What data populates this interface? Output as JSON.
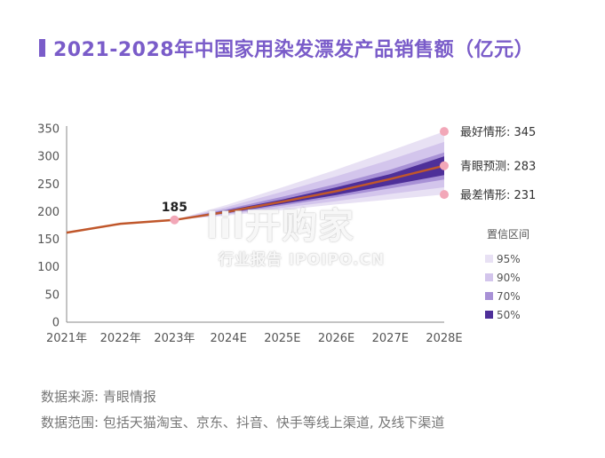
{
  "title": "2021-2028年中国家用染发漂发产品销售额（亿元）",
  "chart_data": {
    "type": "line",
    "title": "2021-2028年中国家用染发漂发产品销售额（亿元）",
    "categories": [
      "2021年",
      "2022年",
      "2023年",
      "2024E",
      "2025E",
      "2026E",
      "2027E",
      "2028E"
    ],
    "ylim": [
      0,
      350
    ],
    "yticks": [
      0,
      50,
      100,
      150,
      200,
      250,
      300,
      350
    ],
    "grid": false,
    "series": [
      {
        "name": "青眼预测",
        "values": [
          162,
          178,
          185,
          200,
          218,
          237,
          259,
          283
        ],
        "color": "#c0572b"
      }
    ],
    "confidence_bands": [
      {
        "name": "95%",
        "color": "#e8e1f4",
        "lower": [
          162,
          178,
          185,
          193,
          203,
          213,
          222,
          231
        ],
        "upper": [
          162,
          178,
          185,
          213,
          244,
          276,
          310,
          345
        ]
      },
      {
        "name": "90%",
        "color": "#d3c5ec",
        "lower": [
          162,
          178,
          185,
          195,
          207,
          219,
          232,
          244
        ],
        "upper": [
          162,
          178,
          185,
          209,
          236,
          264,
          294,
          326
        ]
      },
      {
        "name": "70%",
        "color": "#a891d6",
        "lower": [
          162,
          178,
          185,
          197,
          211,
          226,
          242,
          258
        ],
        "upper": [
          162,
          178,
          185,
          205,
          227,
          250,
          276,
          307
        ]
      },
      {
        "name": "50%",
        "color": "#4e2f99",
        "lower": [
          162,
          178,
          185,
          198,
          214,
          230,
          248,
          266
        ],
        "upper": [
          162,
          178,
          185,
          203,
          222,
          244,
          268,
          300
        ]
      }
    ],
    "legend_title": "置信区间",
    "legend_position": "right",
    "point_label": {
      "category": "2023年",
      "value": 185,
      "text": "185"
    },
    "scenario_markers": [
      {
        "label": "最好情形: 345",
        "value": 345,
        "color": "#f2a7b8"
      },
      {
        "label": "青眼预测: 283",
        "value": 283,
        "color": "#f2a7b8"
      },
      {
        "label": "最差情形: 231",
        "value": 231,
        "color": "#f2a7b8"
      }
    ]
  },
  "footer": {
    "source": "数据来源: 青眼情报",
    "scope": "数据范围: 包括天猫淘宝、京东、抖音、快手等线上渠道, 及线下渠道"
  },
  "watermark": {
    "main": "lil开购家",
    "sub": "行业报告 IPOIPO.CN"
  }
}
